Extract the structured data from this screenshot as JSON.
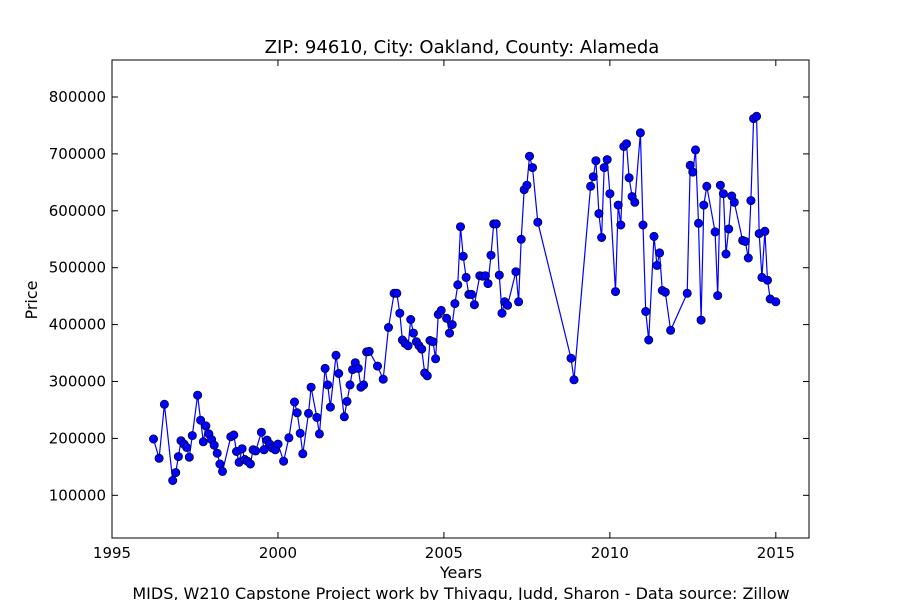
{
  "chart_data": {
    "type": "line",
    "title": "ZIP: 94610, City: Oakland, County: Alameda",
    "xlabel": "Years",
    "ylabel": "Price",
    "credit": "MIDS, W210 Capstone Project work by Thiyagu, Judd, Sharon  -  Data source: Zillow",
    "xlim": [
      1995,
      2016
    ],
    "ylim": [
      25000,
      865000
    ],
    "x_ticks": [
      1995,
      2000,
      2005,
      2010,
      2015
    ],
    "y_ticks": [
      100000,
      200000,
      300000,
      400000,
      500000,
      600000,
      700000,
      800000
    ],
    "grid": false,
    "legend": "none",
    "line_color": "#0000ff",
    "marker_color": "#0000ff",
    "series": [
      {
        "x": [
          1996.25,
          1996.42,
          1996.58,
          1996.83,
          1996.92,
          1997.0,
          1997.08,
          1997.17,
          1997.25,
          1997.33,
          1997.42,
          1997.58,
          1997.67,
          1997.75,
          1997.83,
          1997.92,
          1998.0,
          1998.08,
          1998.17,
          1998.25,
          1998.33,
          1998.58,
          1998.67,
          1998.75,
          1998.83,
          1998.92,
          1999.0,
          1999.08,
          1999.17,
          1999.25,
          1999.33,
          1999.5,
          1999.58,
          1999.67,
          1999.75,
          1999.83,
          1999.92,
          2000.0,
          2000.17,
          2000.33,
          2000.5,
          2000.58,
          2000.67,
          2000.75,
          2000.92,
          2001.0,
          2001.17,
          2001.25,
          2001.42,
          2001.5,
          2001.58,
          2001.75,
          2001.83,
          2002.0,
          2002.08,
          2002.17,
          2002.25,
          2002.33,
          2002.42,
          2002.5,
          2002.58,
          2002.67,
          2002.75,
          2003.0,
          2003.17,
          2003.33,
          2003.5,
          2003.58,
          2003.67,
          2003.75,
          2003.83,
          2003.92,
          2004.0,
          2004.08,
          2004.17,
          2004.25,
          2004.33,
          2004.42,
          2004.5,
          2004.58,
          2004.67,
          2004.75,
          2004.83,
          2004.92,
          2005.08,
          2005.17,
          2005.25,
          2005.33,
          2005.42,
          2005.5,
          2005.58,
          2005.67,
          2005.75,
          2005.83,
          2005.92,
          2006.08,
          2006.17,
          2006.25,
          2006.33,
          2006.42,
          2006.5,
          2006.58,
          2006.67,
          2006.75,
          2006.83,
          2006.92,
          2007.17,
          2007.25,
          2007.33,
          2007.42,
          2007.5,
          2007.58,
          2007.67,
          2007.83,
          2008.83,
          2008.92,
          2009.42,
          2009.5,
          2009.58,
          2009.67,
          2009.75,
          2009.83,
          2009.92,
          2010.0,
          2010.17,
          2010.25,
          2010.33,
          2010.42,
          2010.5,
          2010.58,
          2010.67,
          2010.75,
          2010.92,
          2011.0,
          2011.08,
          2011.17,
          2011.33,
          2011.42,
          2011.5,
          2011.58,
          2011.67,
          2011.83,
          2012.33,
          2012.42,
          2012.5,
          2012.58,
          2012.67,
          2012.75,
          2012.83,
          2012.92,
          2013.17,
          2013.25,
          2013.33,
          2013.42,
          2013.5,
          2013.58,
          2013.67,
          2013.75,
          2014.0,
          2014.08,
          2014.17,
          2014.25,
          2014.33,
          2014.42,
          2014.5,
          2014.58,
          2014.67,
          2014.75,
          2014.83,
          2015.0
        ],
        "y": [
          199000,
          165000,
          260000,
          126000,
          140000,
          168000,
          196000,
          190000,
          184000,
          167000,
          205000,
          276000,
          232000,
          194000,
          222000,
          208000,
          198000,
          188000,
          174000,
          155000,
          142000,
          203000,
          206000,
          177000,
          158000,
          182000,
          163000,
          160000,
          155000,
          180000,
          178000,
          211000,
          180000,
          197000,
          190000,
          183000,
          180000,
          190000,
          160000,
          201000,
          264000,
          245000,
          209000,
          173000,
          244000,
          290000,
          237000,
          208000,
          323000,
          294000,
          255000,
          346000,
          314000,
          238000,
          265000,
          294000,
          321000,
          333000,
          323000,
          290000,
          294000,
          352000,
          353000,
          327000,
          304000,
          395000,
          455000,
          455000,
          420000,
          373000,
          367000,
          363000,
          409000,
          385000,
          370000,
          363000,
          357000,
          315000,
          310000,
          372000,
          370000,
          340000,
          418000,
          425000,
          411000,
          385000,
          400000,
          437000,
          470000,
          572000,
          520000,
          483000,
          453000,
          453000,
          435000,
          486000,
          485000,
          486000,
          472000,
          522000,
          577000,
          577000,
          487000,
          420000,
          440000,
          434000,
          493000,
          440000,
          550000,
          637000,
          645000,
          696000,
          676000,
          580000,
          341000,
          303000,
          643000,
          660000,
          688000,
          595000,
          553000,
          676000,
          690000,
          630000,
          458000,
          610000,
          575000,
          713000,
          718000,
          658000,
          625000,
          615000,
          737000,
          575000,
          423000,
          373000,
          555000,
          504000,
          526000,
          460000,
          457000,
          390000,
          455000,
          680000,
          668000,
          707000,
          578000,
          408000,
          610000,
          643000,
          563000,
          451000,
          645000,
          630000,
          524000,
          568000,
          626000,
          615000,
          548000,
          546000,
          517000,
          618000,
          762000,
          766000,
          560000,
          483000,
          564000,
          478000,
          445000,
          440000
        ]
      }
    ]
  }
}
